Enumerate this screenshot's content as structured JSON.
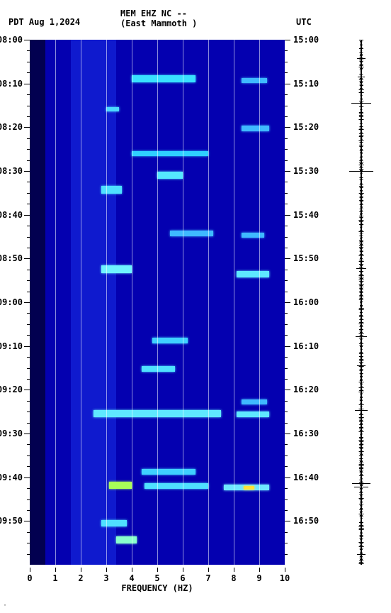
{
  "header": {
    "left": "PDT  Aug 1,2024",
    "center1": "MEM EHZ NC --",
    "center2": "(East Mammoth )",
    "right": "UTC"
  },
  "spectrogram": {
    "type": "heatmap",
    "background_color": "#0400b0",
    "xlim": [
      0,
      10
    ],
    "xticks": [
      0,
      1,
      2,
      3,
      4,
      5,
      6,
      7,
      8,
      9,
      10
    ],
    "xlabel": "FREQUENCY (HZ)",
    "grid_color": "rgba(255,255,255,0.55)",
    "ylabel_left_prefix": "PDT",
    "ylabel_right_prefix": "UTC",
    "left_times": [
      "08:00",
      "08:10",
      "08:20",
      "08:30",
      "08:40",
      "08:50",
      "09:00",
      "09:10",
      "09:20",
      "09:30",
      "09:40",
      "09:50"
    ],
    "right_times": [
      "15:00",
      "15:10",
      "15:20",
      "15:30",
      "15:40",
      "15:50",
      "16:00",
      "16:10",
      "16:20",
      "16:30",
      "16:40",
      "16:50"
    ],
    "time_positions_pct": [
      0,
      8.33,
      16.67,
      25.0,
      33.33,
      41.67,
      50.0,
      58.33,
      66.67,
      75.0,
      83.33,
      91.67
    ],
    "minor_tick_pct": [
      2.083,
      4.167,
      6.25,
      10.417,
      12.5,
      14.583,
      18.75,
      20.833,
      22.917,
      27.083,
      29.167,
      31.25,
      35.417,
      37.5,
      39.583,
      43.75,
      45.833,
      47.917,
      52.083,
      54.167,
      56.25,
      60.417,
      62.5,
      64.583,
      68.75,
      70.833,
      72.917,
      77.083,
      79.167,
      81.25,
      85.417,
      87.5,
      89.583,
      93.75,
      95.833,
      97.917
    ],
    "bright_bands": [
      {
        "top_pct": 6.8,
        "height_pct": 1.3,
        "left_hz": 4.0,
        "right_hz": 6.5,
        "color": "#39e0ff"
      },
      {
        "top_pct": 7.3,
        "height_pct": 1.0,
        "left_hz": 8.3,
        "right_hz": 9.3,
        "color": "#3fb9ff"
      },
      {
        "top_pct": 12.8,
        "height_pct": 0.9,
        "left_hz": 3.0,
        "right_hz": 3.5,
        "color": "#4cd8ff"
      },
      {
        "top_pct": 16.4,
        "height_pct": 1.1,
        "left_hz": 8.3,
        "right_hz": 9.4,
        "color": "#3fb9ff"
      },
      {
        "top_pct": 21.2,
        "height_pct": 1.0,
        "left_hz": 4.0,
        "right_hz": 7.0,
        "color": "#2fd0ff"
      },
      {
        "top_pct": 25.2,
        "height_pct": 1.3,
        "left_hz": 5.0,
        "right_hz": 6.0,
        "color": "#55e8ff"
      },
      {
        "top_pct": 27.8,
        "height_pct": 1.5,
        "left_hz": 2.8,
        "right_hz": 3.6,
        "color": "#4fe0ff"
      },
      {
        "top_pct": 36.3,
        "height_pct": 1.1,
        "left_hz": 5.5,
        "right_hz": 7.2,
        "color": "#3fb9ff"
      },
      {
        "top_pct": 36.7,
        "height_pct": 1.0,
        "left_hz": 8.3,
        "right_hz": 9.2,
        "color": "#3fb9ff"
      },
      {
        "top_pct": 43.0,
        "height_pct": 1.5,
        "left_hz": 2.8,
        "right_hz": 4.0,
        "color": "#6ff2ff"
      },
      {
        "top_pct": 44.1,
        "height_pct": 1.2,
        "left_hz": 8.1,
        "right_hz": 9.4,
        "color": "#5ee8ff"
      },
      {
        "top_pct": 56.7,
        "height_pct": 1.1,
        "left_hz": 4.8,
        "right_hz": 6.2,
        "color": "#3fd0ff"
      },
      {
        "top_pct": 62.1,
        "height_pct": 1.1,
        "left_hz": 4.4,
        "right_hz": 5.7,
        "color": "#4fe0ff"
      },
      {
        "top_pct": 68.5,
        "height_pct": 0.9,
        "left_hz": 8.3,
        "right_hz": 9.3,
        "color": "#3fb9ff"
      },
      {
        "top_pct": 70.6,
        "height_pct": 1.3,
        "left_hz": 2.5,
        "right_hz": 7.5,
        "color": "#5fe8ff"
      },
      {
        "top_pct": 70.8,
        "height_pct": 1.1,
        "left_hz": 8.1,
        "right_hz": 9.4,
        "color": "#5fe8ff"
      },
      {
        "top_pct": 81.8,
        "height_pct": 1.0,
        "left_hz": 4.4,
        "right_hz": 6.5,
        "color": "#3fd0ff"
      },
      {
        "top_pct": 84.2,
        "height_pct": 1.3,
        "left_hz": 3.1,
        "right_hz": 4.0,
        "color": "#a8ff58"
      },
      {
        "top_pct": 84.4,
        "height_pct": 1.1,
        "left_hz": 4.5,
        "right_hz": 7.0,
        "color": "#4fe0ff"
      },
      {
        "top_pct": 84.7,
        "height_pct": 1.1,
        "left_hz": 7.6,
        "right_hz": 9.4,
        "color": "#6fe8ff"
      },
      {
        "top_pct": 85.0,
        "height_pct": 0.7,
        "left_hz": 8.4,
        "right_hz": 8.8,
        "color": "#ffe23a"
      },
      {
        "top_pct": 91.5,
        "height_pct": 1.2,
        "left_hz": 2.8,
        "right_hz": 3.8,
        "color": "#4fe0ff"
      },
      {
        "top_pct": 94.6,
        "height_pct": 1.3,
        "left_hz": 3.4,
        "right_hz": 4.2,
        "color": "#88ffcc"
      }
    ],
    "dark_column": {
      "left_hz": 0,
      "right_hz": 0.6,
      "color": "#020050"
    },
    "mid_column": {
      "left_hz": 1.6,
      "right_hz": 3.4,
      "color": "#1a2fe8",
      "opacity": 0.55
    }
  },
  "trace": {
    "color": "#000000",
    "spikes": [
      {
        "top_pct": 3.5,
        "width": 12
      },
      {
        "top_pct": 7.0,
        "width": 10
      },
      {
        "top_pct": 12.0,
        "width": 28
      },
      {
        "top_pct": 25.0,
        "width": 34
      },
      {
        "top_pct": 43.5,
        "width": 14
      },
      {
        "top_pct": 56.5,
        "width": 16
      },
      {
        "top_pct": 62.0,
        "width": 12
      },
      {
        "top_pct": 70.6,
        "width": 18
      },
      {
        "top_pct": 84.5,
        "width": 26
      },
      {
        "top_pct": 85.2,
        "width": 20
      },
      {
        "top_pct": 98.0,
        "width": 12
      }
    ],
    "noise_width": 6
  },
  "footer_mark": "·"
}
